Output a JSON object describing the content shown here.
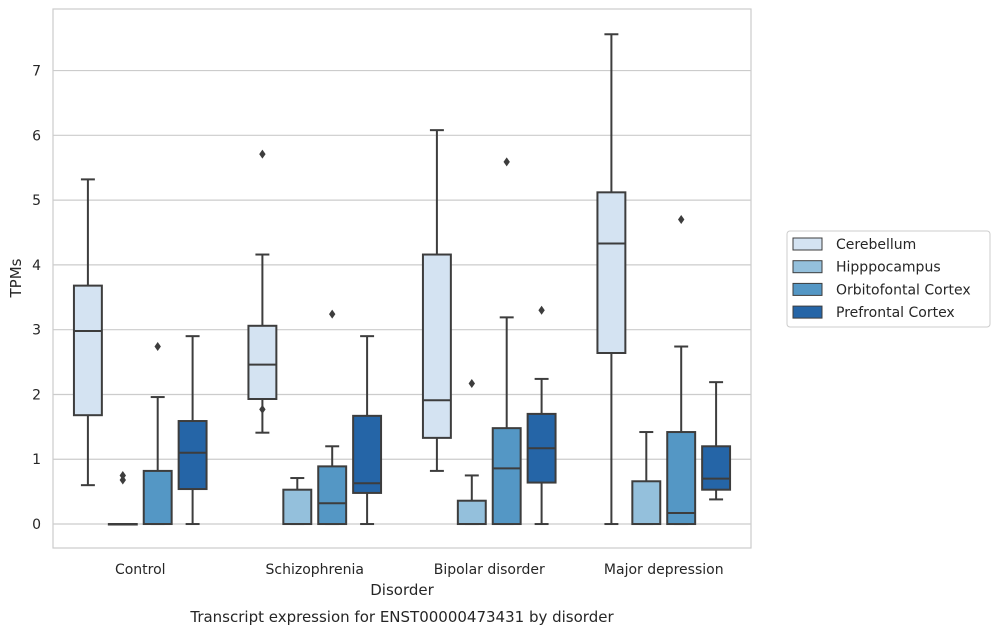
{
  "chart_data": {
    "type": "boxplot",
    "title": "",
    "caption": "Transcript expression for ENST00000473431 by disorder",
    "xlabel": "Disorder",
    "ylabel": "TPMs",
    "ylim": [
      -0.37,
      7.95
    ],
    "yticks": [
      0,
      1,
      2,
      3,
      4,
      5,
      6,
      7
    ],
    "grid": "horizontal",
    "legend_position": "right",
    "categories": [
      "Control",
      "Schizophrenia",
      "Bipolar disorder",
      "Major depression"
    ],
    "series": [
      {
        "name": "Cerebellum",
        "color": "#d4e3f2",
        "boxes": [
          {
            "whislo": 0.6,
            "q1": 1.68,
            "med": 2.98,
            "q3": 3.68,
            "whishi": 5.32,
            "fliers": []
          },
          {
            "whislo": 1.41,
            "q1": 1.93,
            "med": 2.46,
            "q3": 3.06,
            "whishi": 4.16,
            "fliers": [
              5.71,
              1.77
            ]
          },
          {
            "whislo": 0.82,
            "q1": 1.33,
            "med": 1.91,
            "q3": 4.16,
            "whishi": 6.08,
            "fliers": []
          },
          {
            "whislo": 0.0,
            "q1": 2.64,
            "med": 4.33,
            "q3": 5.12,
            "whishi": 7.56,
            "fliers": []
          }
        ]
      },
      {
        "name": "Hipppocampus",
        "color": "#94c0dc",
        "boxes": [
          {
            "whislo": 0.0,
            "q1": 0.0,
            "med": 0.0,
            "q3": 0.0,
            "whishi": 0.0,
            "fliers": [
              0.68,
              0.75
            ]
          },
          {
            "whislo": 0.0,
            "q1": 0.0,
            "med": 0.0,
            "q3": 0.53,
            "whishi": 0.71,
            "fliers": []
          },
          {
            "whislo": 0.0,
            "q1": 0.0,
            "med": 0.0,
            "q3": 0.36,
            "whishi": 0.75,
            "fliers": [
              2.17
            ]
          },
          {
            "whislo": 0.0,
            "q1": 0.0,
            "med": 0.0,
            "q3": 0.66,
            "whishi": 1.42,
            "fliers": []
          }
        ]
      },
      {
        "name": "Orbitofontal Cortex",
        "color": "#5497c5",
        "boxes": [
          {
            "whislo": 0.0,
            "q1": 0.0,
            "med": 0.0,
            "q3": 0.82,
            "whishi": 1.96,
            "fliers": [
              2.74
            ]
          },
          {
            "whislo": 0.0,
            "q1": 0.0,
            "med": 0.32,
            "q3": 0.89,
            "whishi": 1.2,
            "fliers": [
              3.24
            ]
          },
          {
            "whislo": 0.0,
            "q1": 0.0,
            "med": 0.86,
            "q3": 1.48,
            "whishi": 3.19,
            "fliers": [
              5.59
            ]
          },
          {
            "whislo": 0.0,
            "q1": 0.0,
            "med": 0.17,
            "q3": 1.42,
            "whishi": 2.74,
            "fliers": [
              4.7
            ]
          }
        ]
      },
      {
        "name": "Prefrontal Cortex",
        "color": "#2565a7",
        "boxes": [
          {
            "whislo": 0.0,
            "q1": 0.54,
            "med": 1.1,
            "q3": 1.59,
            "whishi": 2.9,
            "fliers": []
          },
          {
            "whislo": 0.0,
            "q1": 0.48,
            "med": 0.63,
            "q3": 1.67,
            "whishi": 2.9,
            "fliers": []
          },
          {
            "whislo": 0.0,
            "q1": 0.64,
            "med": 1.17,
            "q3": 1.7,
            "whishi": 2.24,
            "fliers": [
              3.3
            ]
          },
          {
            "whislo": 0.38,
            "q1": 0.53,
            "med": 0.7,
            "q3": 1.2,
            "whishi": 2.19,
            "fliers": []
          }
        ]
      }
    ]
  }
}
